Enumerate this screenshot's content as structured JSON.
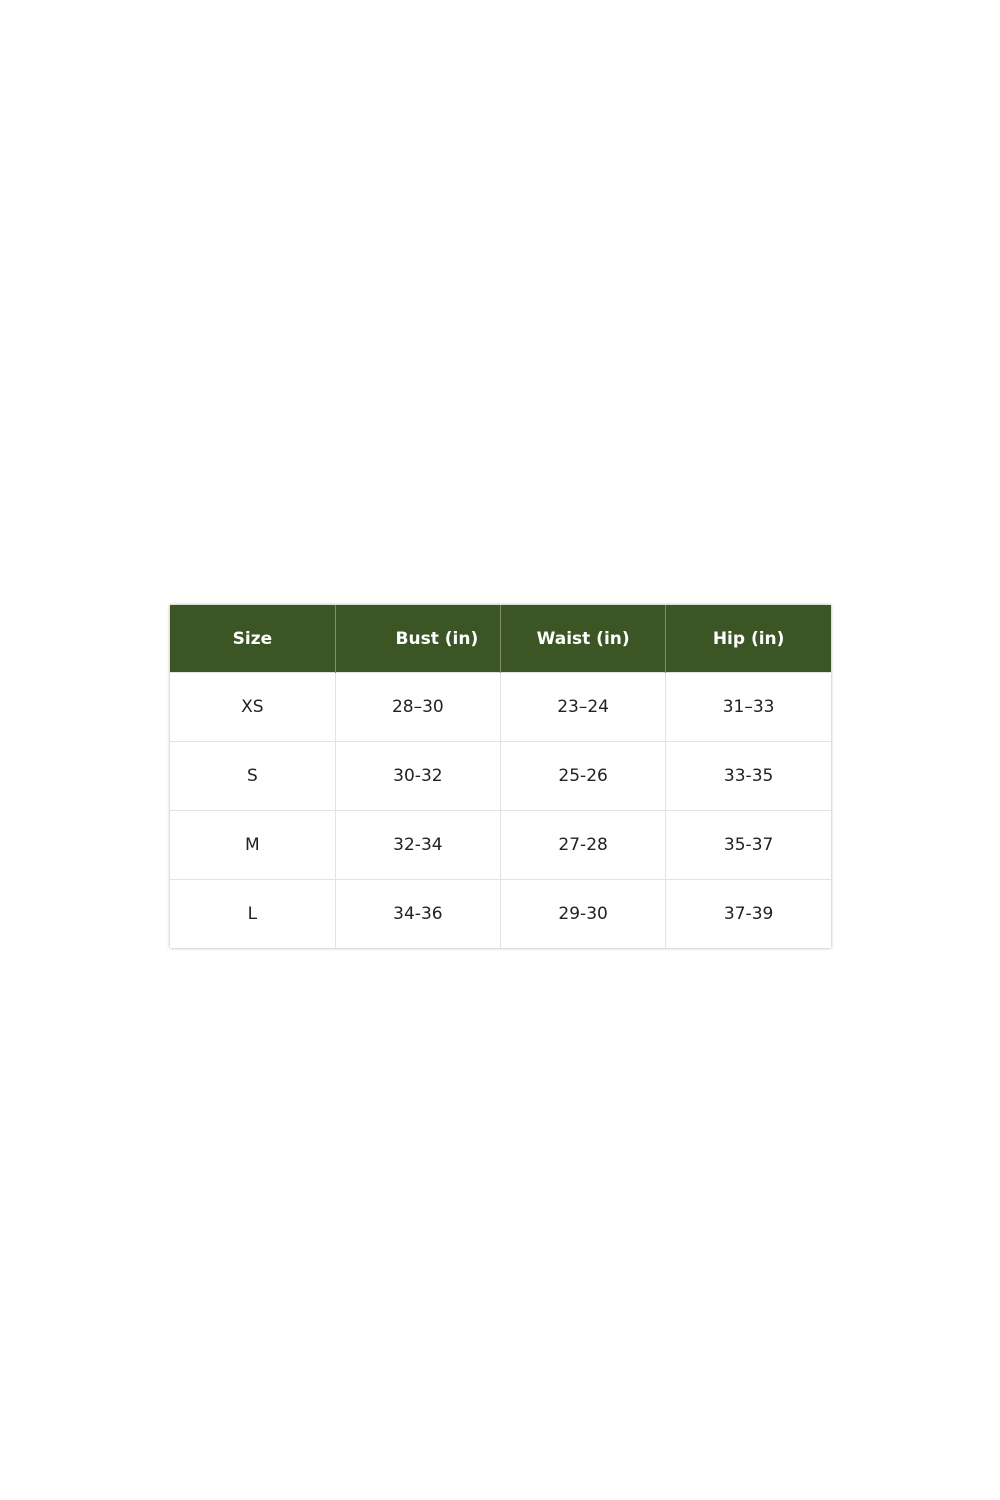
{
  "table": {
    "header_color": "#3b5524",
    "headers": [
      "Size",
      "Bust (in)",
      "Waist (in)",
      "Hip (in)"
    ],
    "rows": [
      [
        "XS",
        "28–30",
        "23–24",
        "31–33"
      ],
      [
        "S",
        "30-32",
        "25-26",
        "33-35"
      ],
      [
        "M",
        "32-34",
        "27-28",
        "35-37"
      ],
      [
        "L",
        "34-36",
        "29-30",
        "37-39"
      ]
    ]
  }
}
